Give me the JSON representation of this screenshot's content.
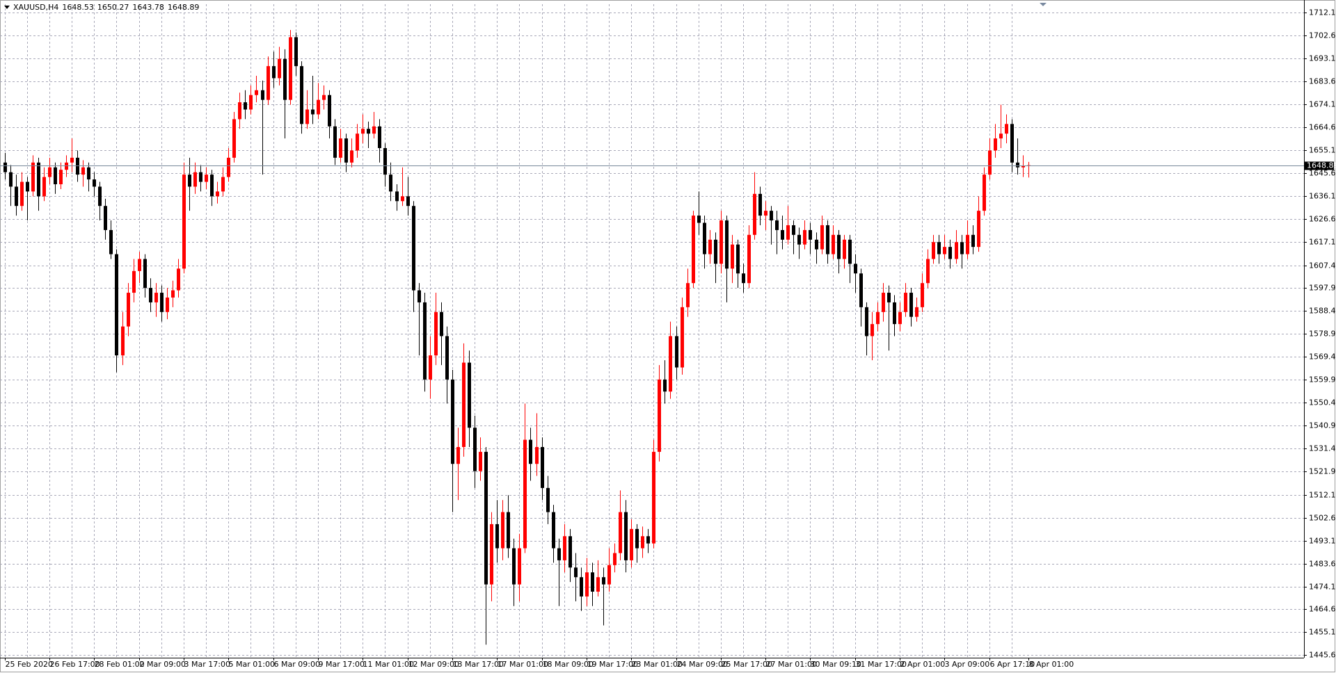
{
  "chart_data": {
    "type": "candlestick",
    "symbol": "XAUUSD,H4",
    "up_color": "#ff0000",
    "down_color": "#000000",
    "grid": true,
    "current_price_color": "#778899",
    "ylim": [
      1444.6,
      1715.7
    ],
    "yticks": [
      1445.65,
      1455.15,
      1464.65,
      1474.15,
      1483.65,
      1493.15,
      1502.65,
      1512.15,
      {
        "value": 1521.9,
        "label": "1521.90"
      },
      {
        "value": 1531.4,
        "label": "1531.40"
      },
      {
        "value": 1540.9,
        "label": "1540.90"
      },
      {
        "value": 1550.4,
        "label": "1550.40"
      },
      {
        "value": 1559.9,
        "label": "1559.90"
      },
      {
        "value": 1569.4,
        "label": "1569.40"
      },
      {
        "value": 1578.9,
        "label": "1578.90"
      },
      {
        "value": 1588.4,
        "label": "1588.40"
      },
      {
        "value": 1597.9,
        "label": "1597.90"
      },
      {
        "value": 1607.4,
        "label": "1607.40"
      },
      1617.15,
      1626.65,
      1636.15,
      1645.65,
      1655.15,
      1664.65,
      1674.15,
      1683.65,
      1693.15,
      1702.65,
      1712.15
    ],
    "categories": [
      "25 Feb 2020",
      null,
      null,
      null,
      null,
      null,
      null,
      null,
      "26 Feb 17:00",
      null,
      null,
      null,
      null,
      null,
      null,
      null,
      "28 Feb 01:00",
      null,
      null,
      null,
      null,
      null,
      null,
      null,
      "2 Mar 09:00",
      null,
      null,
      null,
      null,
      null,
      null,
      null,
      "3 Mar 17:00",
      null,
      null,
      null,
      null,
      null,
      null,
      null,
      "5 Mar 01:00",
      null,
      null,
      null,
      null,
      null,
      null,
      null,
      "6 Mar 09:00",
      null,
      null,
      null,
      null,
      null,
      null,
      null,
      "9 Mar 17:00",
      null,
      null,
      null,
      null,
      null,
      null,
      null,
      "11 Mar 01:00",
      null,
      null,
      null,
      null,
      null,
      null,
      null,
      "12 Mar 09:00",
      null,
      null,
      null,
      null,
      null,
      null,
      null,
      "13 Mar 17:00",
      null,
      null,
      null,
      null,
      null,
      null,
      null,
      "17 Mar 01:00",
      null,
      null,
      null,
      null,
      null,
      null,
      null,
      "18 Mar 09:00",
      null,
      null,
      null,
      null,
      null,
      null,
      null,
      "19 Mar 17:00",
      null,
      null,
      null,
      null,
      null,
      null,
      null,
      "23 Mar 01:00",
      null,
      null,
      null,
      null,
      null,
      null,
      null,
      "24 Mar 09:00",
      null,
      null,
      null,
      null,
      null,
      null,
      null,
      "25 Mar 17:00",
      null,
      null,
      null,
      null,
      null,
      null,
      null,
      "27 Mar 01:00",
      null,
      null,
      null,
      null,
      null,
      null,
      null,
      "30 Mar 09:10",
      null,
      null,
      null,
      null,
      null,
      null,
      null,
      "31 Mar 17:00",
      null,
      null,
      null,
      null,
      null,
      null,
      null,
      "2 Apr 01:00",
      null,
      null,
      null,
      null,
      null,
      null,
      null,
      "3 Apr 09:00",
      null,
      null,
      null,
      null,
      null,
      null,
      null,
      "6 Apr 17:10",
      null,
      null,
      null,
      null,
      null,
      null,
      "8 Apr 01:00"
    ],
    "candles": [
      [
        1650,
        1654,
        1643,
        1646
      ],
      [
        1646,
        1649,
        1632,
        1640
      ],
      [
        1640,
        1645,
        1628,
        1632
      ],
      [
        1632,
        1646,
        1630,
        1642
      ],
      [
        1642,
        1644,
        1626,
        1638
      ],
      [
        1638,
        1653,
        1636,
        1650
      ],
      [
        1650,
        1652,
        1630,
        1636
      ],
      [
        1636,
        1648,
        1634,
        1644
      ],
      [
        1644,
        1652,
        1641,
        1648
      ],
      [
        1648,
        1650,
        1637,
        1641
      ],
      [
        1641,
        1650,
        1639,
        1647
      ],
      [
        1647,
        1653,
        1644,
        1650
      ],
      [
        1650,
        1660,
        1646,
        1652
      ],
      [
        1652,
        1655,
        1642,
        1645
      ],
      [
        1645,
        1651,
        1640,
        1648
      ],
      [
        1648,
        1650,
        1638,
        1643
      ],
      [
        1643,
        1646,
        1636,
        1640
      ],
      [
        1640,
        1642,
        1626,
        1632
      ],
      [
        1632,
        1635,
        1618,
        1622
      ],
      [
        1622,
        1626,
        1610,
        1612
      ],
      [
        1612,
        1614,
        1563,
        1570
      ],
      [
        1570,
        1588,
        1566,
        1582
      ],
      [
        1582,
        1600,
        1578,
        1596
      ],
      [
        1596,
        1610,
        1592,
        1605
      ],
      [
        1605,
        1613,
        1600,
        1610
      ],
      [
        1610,
        1612,
        1594,
        1598
      ],
      [
        1598,
        1602,
        1588,
        1592
      ],
      [
        1592,
        1600,
        1586,
        1596
      ],
      [
        1596,
        1599,
        1584,
        1588
      ],
      [
        1588,
        1598,
        1585,
        1594
      ],
      [
        1594,
        1601,
        1590,
        1597
      ],
      [
        1597,
        1610,
        1594,
        1606
      ],
      [
        1606,
        1650,
        1604,
        1645
      ],
      [
        1645,
        1652,
        1630,
        1640
      ],
      [
        1640,
        1650,
        1637,
        1646
      ],
      [
        1646,
        1649,
        1638,
        1642
      ],
      [
        1642,
        1648,
        1639,
        1645
      ],
      [
        1645,
        1647,
        1632,
        1636
      ],
      [
        1636,
        1642,
        1633,
        1638
      ],
      [
        1638,
        1648,
        1636,
        1644
      ],
      [
        1644,
        1656,
        1642,
        1652
      ],
      [
        1652,
        1671,
        1650,
        1668
      ],
      [
        1668,
        1679,
        1664,
        1675
      ],
      [
        1675,
        1680,
        1668,
        1672
      ],
      [
        1672,
        1682,
        1670,
        1678
      ],
      [
        1678,
        1686,
        1675,
        1680
      ],
      [
        1680,
        1684,
        1645,
        1676
      ],
      [
        1676,
        1694,
        1674,
        1690
      ],
      [
        1690,
        1696,
        1681,
        1685
      ],
      [
        1685,
        1698,
        1682,
        1693
      ],
      [
        1693,
        1697,
        1660,
        1676
      ],
      [
        1676,
        1705,
        1674,
        1702
      ],
      [
        1702,
        1704,
        1686,
        1690
      ],
      [
        1690,
        1692,
        1662,
        1666
      ],
      [
        1666,
        1680,
        1664,
        1672
      ],
      [
        1672,
        1686,
        1666,
        1670
      ],
      [
        1670,
        1683,
        1668,
        1676
      ],
      [
        1676,
        1682,
        1672,
        1678
      ],
      [
        1678,
        1680,
        1660,
        1665
      ],
      [
        1665,
        1668,
        1649,
        1652
      ],
      [
        1652,
        1664,
        1650,
        1660
      ],
      [
        1660,
        1662,
        1646,
        1650
      ],
      [
        1650,
        1660,
        1648,
        1655
      ],
      [
        1655,
        1666,
        1652,
        1662
      ],
      [
        1662,
        1670,
        1658,
        1664
      ],
      [
        1664,
        1667,
        1656,
        1662
      ],
      [
        1662,
        1671,
        1660,
        1665
      ],
      [
        1665,
        1668,
        1650,
        1656
      ],
      [
        1656,
        1658,
        1640,
        1645
      ],
      [
        1645,
        1650,
        1634,
        1638
      ],
      [
        1638,
        1641,
        1630,
        1634
      ],
      [
        1634,
        1648,
        1632,
        1636
      ],
      [
        1636,
        1644,
        1628,
        1632
      ],
      [
        1632,
        1634,
        1588,
        1597
      ],
      [
        1597,
        1600,
        1570,
        1592
      ],
      [
        1592,
        1596,
        1555,
        1560
      ],
      [
        1560,
        1578,
        1552,
        1570
      ],
      [
        1570,
        1596,
        1566,
        1588
      ],
      [
        1588,
        1592,
        1566,
        1578
      ],
      [
        1578,
        1582,
        1550,
        1560
      ],
      [
        1560,
        1564,
        1505,
        1525
      ],
      [
        1525,
        1540,
        1510,
        1532
      ],
      [
        1532,
        1575,
        1528,
        1567
      ],
      [
        1567,
        1572,
        1532,
        1540
      ],
      [
        1540,
        1545,
        1515,
        1522
      ],
      [
        1522,
        1536,
        1518,
        1530
      ],
      [
        1530,
        1532,
        1450,
        1475
      ],
      [
        1475,
        1505,
        1468,
        1500
      ],
      [
        1500,
        1510,
        1484,
        1490
      ],
      [
        1490,
        1510,
        1485,
        1505
      ],
      [
        1505,
        1512,
        1486,
        1490
      ],
      [
        1490,
        1494,
        1466,
        1475
      ],
      [
        1475,
        1496,
        1468,
        1490
      ],
      [
        1490,
        1550,
        1488,
        1535
      ],
      [
        1535,
        1540,
        1518,
        1525
      ],
      [
        1525,
        1546,
        1520,
        1532
      ],
      [
        1532,
        1536,
        1510,
        1515
      ],
      [
        1515,
        1520,
        1500,
        1505
      ],
      [
        1505,
        1508,
        1484,
        1490
      ],
      [
        1490,
        1494,
        1466,
        1485
      ],
      [
        1485,
        1500,
        1480,
        1495
      ],
      [
        1495,
        1498,
        1476,
        1482
      ],
      [
        1482,
        1488,
        1468,
        1478
      ],
      [
        1478,
        1482,
        1464,
        1470
      ],
      [
        1470,
        1486,
        1466,
        1480
      ],
      [
        1480,
        1484,
        1466,
        1472
      ],
      [
        1472,
        1485,
        1470,
        1478
      ],
      [
        1478,
        1482,
        1458,
        1475
      ],
      [
        1475,
        1490,
        1472,
        1483
      ],
      [
        1483,
        1492,
        1480,
        1488
      ],
      [
        1488,
        1514,
        1485,
        1505
      ],
      [
        1505,
        1510,
        1480,
        1485
      ],
      [
        1485,
        1502,
        1482,
        1498
      ],
      [
        1498,
        1500,
        1484,
        1490
      ],
      [
        1490,
        1499,
        1486,
        1495
      ],
      [
        1495,
        1498,
        1488,
        1492
      ],
      [
        1492,
        1535,
        1490,
        1530
      ],
      [
        1530,
        1566,
        1526,
        1560
      ],
      [
        1560,
        1568,
        1550,
        1555
      ],
      [
        1555,
        1584,
        1552,
        1578
      ],
      [
        1578,
        1582,
        1560,
        1565
      ],
      [
        1565,
        1594,
        1562,
        1590
      ],
      [
        1590,
        1606,
        1586,
        1600
      ],
      [
        1600,
        1630,
        1598,
        1628
      ],
      [
        1628,
        1638,
        1620,
        1625
      ],
      [
        1625,
        1628,
        1606,
        1612
      ],
      [
        1612,
        1622,
        1608,
        1618
      ],
      [
        1618,
        1621,
        1600,
        1608
      ],
      [
        1608,
        1630,
        1604,
        1626
      ],
      [
        1626,
        1628,
        1592,
        1606
      ],
      [
        1606,
        1620,
        1600,
        1616
      ],
      [
        1616,
        1618,
        1598,
        1604
      ],
      [
        1604,
        1608,
        1596,
        1600
      ],
      [
        1600,
        1624,
        1598,
        1620
      ],
      [
        1620,
        1646,
        1618,
        1637
      ],
      [
        1637,
        1640,
        1624,
        1628
      ],
      [
        1628,
        1634,
        1622,
        1630
      ],
      [
        1630,
        1632,
        1616,
        1626
      ],
      [
        1626,
        1630,
        1612,
        1622
      ],
      [
        1622,
        1628,
        1614,
        1618
      ],
      [
        1618,
        1632,
        1616,
        1624
      ],
      [
        1624,
        1626,
        1612,
        1620
      ],
      [
        1620,
        1623,
        1610,
        1616
      ],
      [
        1616,
        1626,
        1614,
        1622
      ],
      [
        1622,
        1625,
        1612,
        1618
      ],
      [
        1618,
        1621,
        1608,
        1614
      ],
      [
        1614,
        1628,
        1612,
        1624
      ],
      [
        1624,
        1626,
        1608,
        1612
      ],
      [
        1612,
        1624,
        1610,
        1620
      ],
      [
        1620,
        1622,
        1604,
        1610
      ],
      [
        1610,
        1620,
        1606,
        1618
      ],
      [
        1618,
        1620,
        1600,
        1608
      ],
      [
        1608,
        1612,
        1596,
        1604
      ],
      [
        1604,
        1606,
        1582,
        1590
      ],
      [
        1590,
        1592,
        1570,
        1578
      ],
      [
        1578,
        1588,
        1568,
        1583
      ],
      [
        1583,
        1592,
        1580,
        1588
      ],
      [
        1588,
        1600,
        1584,
        1596
      ],
      [
        1596,
        1599,
        1572,
        1592
      ],
      [
        1592,
        1595,
        1578,
        1583
      ],
      [
        1583,
        1592,
        1580,
        1588
      ],
      [
        1588,
        1600,
        1586,
        1596
      ],
      [
        1596,
        1598,
        1582,
        1586
      ],
      [
        1586,
        1594,
        1584,
        1590
      ],
      [
        1590,
        1604,
        1588,
        1600
      ],
      [
        1600,
        1614,
        1598,
        1610
      ],
      [
        1610,
        1620,
        1608,
        1617
      ],
      [
        1617,
        1620,
        1608,
        1612
      ],
      [
        1612,
        1620,
        1610,
        1615
      ],
      [
        1615,
        1618,
        1606,
        1610
      ],
      [
        1610,
        1622,
        1608,
        1617
      ],
      [
        1617,
        1620,
        1606,
        1612
      ],
      [
        1612,
        1626,
        1610,
        1620
      ],
      [
        1620,
        1624,
        1612,
        1615
      ],
      [
        1615,
        1636,
        1613,
        1630
      ],
      [
        1630,
        1648,
        1628,
        1645
      ],
      [
        1645,
        1660,
        1643,
        1655
      ],
      [
        1655,
        1666,
        1652,
        1660
      ],
      [
        1660,
        1674,
        1656,
        1662
      ],
      [
        1662,
        1670,
        1658,
        1666
      ],
      [
        1666,
        1668,
        1646,
        1650
      ],
      [
        1650,
        1660,
        1645,
        1648
      ],
      [
        1648,
        1653,
        1644,
        1648.53
      ],
      [
        1648.53,
        1650.27,
        1643.78,
        1648.89
      ]
    ]
  }
}
